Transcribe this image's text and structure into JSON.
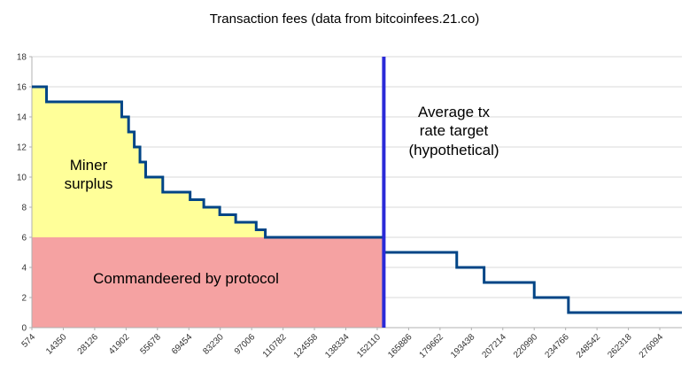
{
  "chart_data": {
    "type": "line",
    "title": "Transaction fees (data from bitcoinfees.21.co)",
    "xlabel": "",
    "ylabel": "",
    "xlim": [
      574,
      285800
    ],
    "ylim": [
      0,
      18
    ],
    "grid": "horizontal",
    "y_ticks": [
      0,
      2,
      4,
      6,
      8,
      10,
      12,
      14,
      16,
      18
    ],
    "x_tick_labels": [
      574,
      14350,
      28126,
      41902,
      55678,
      69454,
      83230,
      97006,
      110782,
      124558,
      138334,
      152110,
      165886,
      179662,
      193438,
      207214,
      220990,
      234766,
      248542,
      262318,
      276094
    ],
    "series": [
      {
        "name": "fee-rate-step",
        "type": "step",
        "color": "#004586",
        "steps": [
          [
            574,
            16
          ],
          [
            7000,
            15
          ],
          [
            40000,
            14
          ],
          [
            43000,
            13
          ],
          [
            45500,
            12
          ],
          [
            48000,
            11
          ],
          [
            50500,
            10
          ],
          [
            58000,
            9
          ],
          [
            70000,
            8.5
          ],
          [
            76000,
            8
          ],
          [
            83000,
            7.5
          ],
          [
            90000,
            7
          ],
          [
            99000,
            6.5
          ],
          [
            103000,
            6
          ],
          [
            155000,
            5
          ],
          [
            187000,
            4
          ],
          [
            199000,
            3
          ],
          [
            221000,
            2
          ],
          [
            236000,
            1
          ]
        ],
        "x_end": 285800
      }
    ],
    "baseline_y": 6,
    "vline": {
      "x": 155000,
      "color": "#2a2ad8"
    },
    "regions": [
      {
        "name": "miner-surplus",
        "fill": "#ffff99",
        "desc": "area between fee curve and y=6, left of vline"
      },
      {
        "name": "commandeered-by-protocol",
        "fill": "#f5a2a2",
        "desc": "area y 0 to 6, left of vline"
      }
    ],
    "annotations": {
      "miner_surplus": {
        "lines": [
          "Miner",
          "surplus"
        ]
      },
      "commandeered": {
        "text": "Commandeered by protocol"
      },
      "rate_target": {
        "lines": [
          "Average tx",
          "rate target",
          "(hypothetical)"
        ]
      }
    }
  },
  "colors": {
    "background": "#ffffff",
    "grid": "#d9d9d9",
    "axis": "#b0b0b0",
    "tick_text": "#333333",
    "surplus_fill": "#ffff99",
    "protocol_fill": "#f5a2a2",
    "step_line": "#004586",
    "vline": "#2a2ad8"
  }
}
